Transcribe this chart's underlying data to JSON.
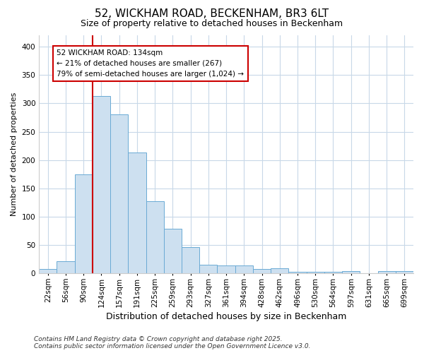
{
  "title1": "52, WICKHAM ROAD, BECKENHAM, BR3 6LT",
  "title2": "Size of property relative to detached houses in Beckenham",
  "xlabel": "Distribution of detached houses by size in Beckenham",
  "ylabel": "Number of detached properties",
  "bar_labels": [
    "22sqm",
    "56sqm",
    "90sqm",
    "124sqm",
    "157sqm",
    "191sqm",
    "225sqm",
    "259sqm",
    "293sqm",
    "327sqm",
    "361sqm",
    "394sqm",
    "428sqm",
    "462sqm",
    "496sqm",
    "530sqm",
    "564sqm",
    "597sqm",
    "631sqm",
    "665sqm",
    "699sqm"
  ],
  "bar_values": [
    8,
    22,
    175,
    313,
    280,
    213,
    127,
    79,
    47,
    15,
    14,
    14,
    8,
    9,
    3,
    3,
    3,
    4,
    1,
    4,
    4
  ],
  "bar_color": "#cde0f0",
  "bar_edge_color": "#6aaad4",
  "background_color": "#ffffff",
  "grid_color": "#c8d8e8",
  "vline_x_index": 3,
  "vline_color": "#cc0000",
  "annotation_text": "52 WICKHAM ROAD: 134sqm\n← 21% of detached houses are smaller (267)\n79% of semi-detached houses are larger (1,024) →",
  "annotation_box_color": "#ffffff",
  "annotation_box_edge": "#cc0000",
  "footer_text": "Contains HM Land Registry data © Crown copyright and database right 2025.\nContains public sector information licensed under the Open Government Licence v3.0.",
  "ylim": [
    0,
    420
  ],
  "yticks": [
    0,
    50,
    100,
    150,
    200,
    250,
    300,
    350,
    400
  ],
  "title1_fontsize": 11,
  "title2_fontsize": 9,
  "xlabel_fontsize": 9,
  "ylabel_fontsize": 8,
  "tick_fontsize": 7.5,
  "footer_fontsize": 6.5
}
